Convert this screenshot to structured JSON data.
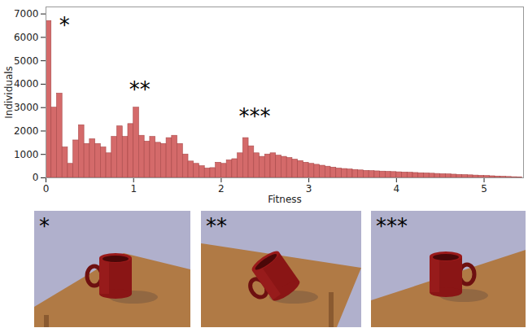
{
  "chart_data": {
    "type": "histogram",
    "xlabel": "Fitness",
    "ylabel": "Individuals",
    "bins": [
      0,
      0.0625,
      0.125,
      0.1875,
      0.25,
      0.3125,
      0.375,
      0.4375,
      0.5,
      0.5625,
      0.625,
      0.6875,
      0.75,
      0.8125,
      0.875,
      0.9375,
      1,
      1.0625,
      1.125,
      1.1875,
      1.25,
      1.3125,
      1.375,
      1.4375,
      1.5,
      1.5625,
      1.625,
      1.6875,
      1.75,
      1.8125,
      1.875,
      1.9375,
      2,
      2.0625,
      2.125,
      2.1875,
      2.25,
      2.3125,
      2.375,
      2.4375,
      2.5,
      2.5625,
      2.625,
      2.6875,
      2.75,
      2.8125,
      2.875,
      2.9375,
      3,
      3.0625,
      3.125,
      3.1875,
      3.25,
      3.3125,
      3.375,
      3.4375,
      3.5,
      3.5625,
      3.625,
      3.6875,
      3.75,
      3.8125,
      3.875,
      3.9375,
      4,
      4.0625,
      4.125,
      4.1875,
      4.25,
      4.3125,
      4.375,
      4.4375,
      4.5,
      4.5625,
      4.625,
      4.6875,
      4.75,
      4.8125,
      4.875,
      4.9375,
      5,
      5.0625,
      5.125,
      5.1875,
      5.25,
      5.3125,
      5.375,
      5.4375
    ],
    "values": [
      6700,
      3000,
      3600,
      1300,
      600,
      1600,
      2250,
      1450,
      1650,
      1450,
      1300,
      1050,
      1750,
      2200,
      1750,
      2300,
      3000,
      1800,
      1550,
      1750,
      1500,
      1450,
      1700,
      1800,
      1450,
      1000,
      700,
      600,
      500,
      400,
      420,
      650,
      600,
      750,
      800,
      1050,
      1700,
      1350,
      1050,
      900,
      1000,
      1050,
      950,
      900,
      850,
      780,
      720,
      650,
      600,
      560,
      520,
      480,
      440,
      400,
      380,
      360,
      340,
      320,
      300,
      290,
      280,
      270,
      260,
      250,
      240,
      230,
      220,
      210,
      200,
      190,
      180,
      170,
      160,
      150,
      140,
      130,
      120,
      110,
      100,
      90,
      80,
      70,
      60,
      50,
      40,
      30,
      20
    ],
    "color": "#d46a6a",
    "xlim": [
      0,
      5.45
    ],
    "xticks": [
      0,
      1,
      2,
      3,
      4,
      5
    ],
    "ylim": [
      0,
      7300
    ],
    "yticks": [
      0,
      1000,
      2000,
      3000,
      4000,
      5000,
      6000,
      7000
    ],
    "annotations": [
      {
        "text": "*",
        "x": 0.15,
        "y": 6500
      },
      {
        "text": "**",
        "x": 0.95,
        "y": 3750
      },
      {
        "text": "***",
        "x": 2.2,
        "y": 2600
      }
    ]
  },
  "panels": [
    {
      "label": "*"
    },
    {
      "label": "**"
    },
    {
      "label": "***"
    }
  ]
}
